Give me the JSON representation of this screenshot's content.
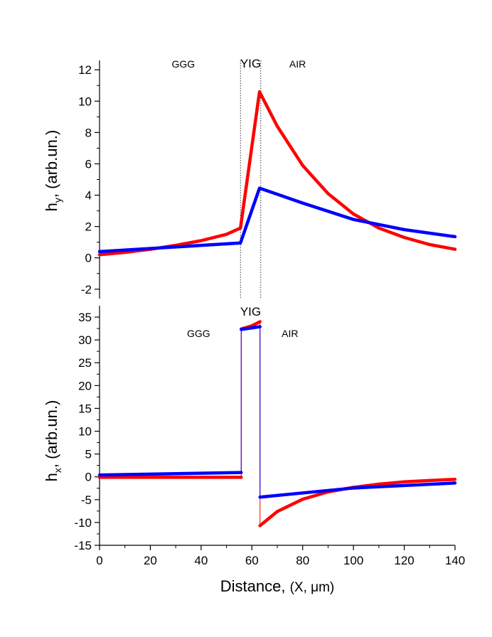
{
  "chart_data": [
    {
      "type": "line",
      "panel": "top",
      "ylabel_main": "h",
      "ylabel_sub": "y",
      "ylabel_rest": ", (arb.un.)",
      "xlim": [
        0,
        140
      ],
      "ylim": [
        -2.6,
        12.6
      ],
      "yticks": [
        -2,
        0,
        2,
        4,
        6,
        8,
        10,
        12
      ],
      "regions": [
        {
          "label": "GGG",
          "x": 33
        },
        {
          "label": "YIG",
          "x": 59.5
        },
        {
          "label": "AIR",
          "x": 78
        }
      ],
      "boundaries": [
        55.5,
        63.5
      ],
      "series": [
        {
          "name": "red",
          "color": "#ff0000",
          "points": [
            [
              0,
              0.2
            ],
            [
              10,
              0.35
            ],
            [
              20,
              0.55
            ],
            [
              30,
              0.8
            ],
            [
              40,
              1.1
            ],
            [
              50,
              1.5
            ],
            [
              55.5,
              1.9
            ],
            [
              63,
              10.6
            ],
            [
              70,
              8.4
            ],
            [
              80,
              5.9
            ],
            [
              90,
              4.1
            ],
            [
              100,
              2.8
            ],
            [
              110,
              1.9
            ],
            [
              120,
              1.3
            ],
            [
              130,
              0.85
            ],
            [
              140,
              0.55
            ]
          ]
        },
        {
          "name": "blue",
          "color": "#0000ff",
          "points": [
            [
              0,
              0.4
            ],
            [
              55.5,
              0.95
            ],
            [
              63,
              4.45
            ],
            [
              80,
              3.5
            ],
            [
              100,
              2.45
            ],
            [
              120,
              1.8
            ],
            [
              140,
              1.35
            ]
          ]
        }
      ]
    },
    {
      "type": "line",
      "panel": "bottom",
      "ylabel_main": "h",
      "ylabel_sub": "x",
      "ylabel_rest": ", (arb.un.)",
      "xlabel": "Distance, ",
      "xlabel_paren": "(X, μm)",
      "xlim": [
        0,
        140
      ],
      "ylim": [
        -15,
        37.5
      ],
      "yticks": [
        -15,
        -10,
        -5,
        0,
        5,
        10,
        15,
        20,
        25,
        30,
        35
      ],
      "xticks": [
        0,
        20,
        40,
        60,
        80,
        100,
        120,
        140
      ],
      "regions": [
        {
          "label": "GGG",
          "x": 39
        },
        {
          "label": "YIG",
          "x": 59.5
        },
        {
          "label": "AIR",
          "x": 75
        }
      ],
      "series": [
        {
          "name": "red",
          "color": "#ff0000",
          "points": [
            [
              0,
              -0.1
            ],
            [
              55.8,
              -0.1
            ],
            [
              55.8,
              32.4
            ],
            [
              60,
              33.1
            ],
            [
              63.2,
              34.0
            ],
            [
              63.2,
              -10.7
            ],
            [
              70,
              -7.6
            ],
            [
              80,
              -4.9
            ],
            [
              90,
              -3.3
            ],
            [
              100,
              -2.3
            ],
            [
              110,
              -1.6
            ],
            [
              120,
              -1.1
            ],
            [
              130,
              -0.8
            ],
            [
              140,
              -0.55
            ]
          ]
        },
        {
          "name": "blue",
          "color": "#0000ff",
          "points": [
            [
              0,
              0.4
            ],
            [
              55.8,
              0.95
            ],
            [
              55.8,
              32.3
            ],
            [
              63.2,
              32.9
            ],
            [
              63.2,
              -4.45
            ],
            [
              100,
              -2.45
            ],
            [
              140,
              -1.35
            ]
          ]
        }
      ]
    }
  ]
}
